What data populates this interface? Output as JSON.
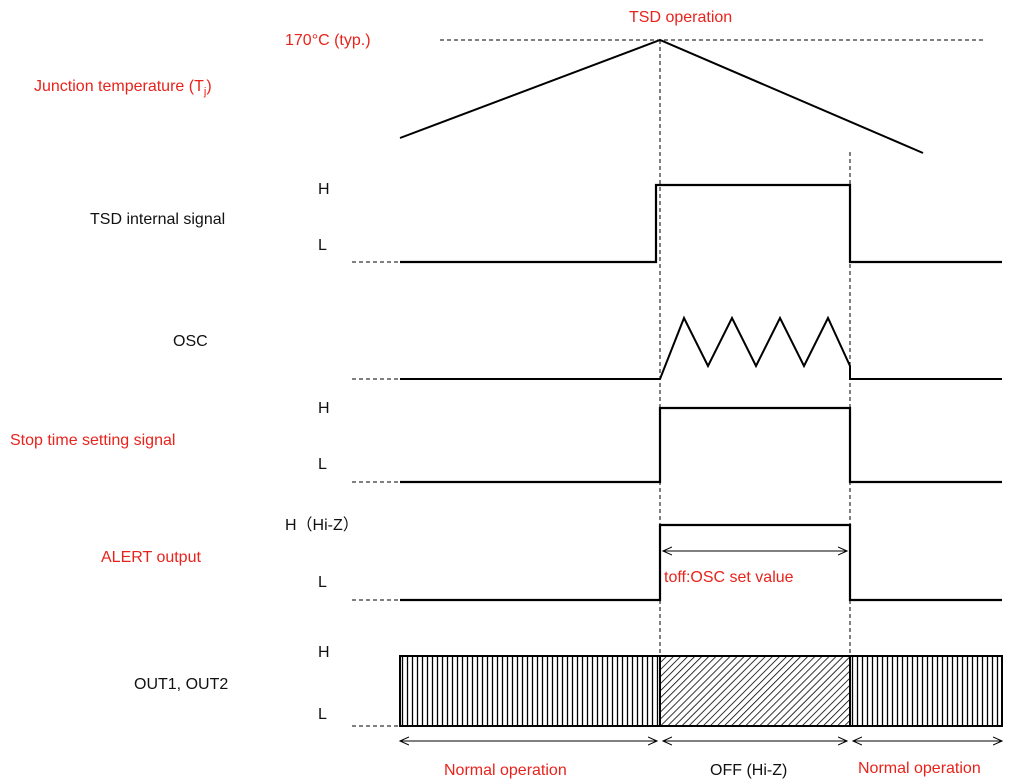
{
  "title": "TSD operation",
  "temperature": {
    "threshold_label": "170°C (typ.)",
    "label_prefix": "Junction temperature (T",
    "label_sub": "j",
    "label_suffix": ")"
  },
  "signals": {
    "tsd_internal": {
      "name": "TSD internal signal",
      "high": "H",
      "low": "L"
    },
    "osc": {
      "name": "OSC"
    },
    "stop_time": {
      "name": "Stop time setting signal",
      "high": "H",
      "low": "L"
    },
    "alert": {
      "name": "ALERT output",
      "high": "H（Hi-Z）",
      "low": "L",
      "duration_label": "toff:OSC set value"
    },
    "outputs": {
      "name": "OUT1, OUT2",
      "high": "H",
      "low": "L"
    }
  },
  "phases": [
    {
      "label": "Normal operation"
    },
    {
      "label": "OFF (Hi-Z)"
    },
    {
      "label": "Normal operation"
    }
  ],
  "colors": {
    "accent": "#e8231c",
    "text": "#111111",
    "line": "#000000"
  }
}
